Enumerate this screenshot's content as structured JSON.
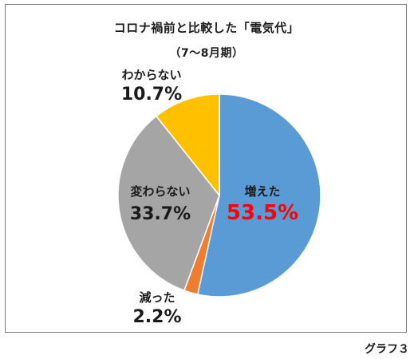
{
  "caption": "グラフ３",
  "chart_data": {
    "type": "pie",
    "title": "コロナ禍前と比較した「電気代」",
    "subtitle": "（7～8月期）",
    "slices": [
      {
        "label": "増えた",
        "value": 53.5,
        "display": "53.5%",
        "color": "#5b9bd5",
        "value_color": "#ff0000"
      },
      {
        "label": "減った",
        "value": 2.2,
        "display": "2.2%",
        "color": "#ed7d31",
        "value_color": "#1a1a1a"
      },
      {
        "label": "変わらない",
        "value": 33.7,
        "display": "33.7%",
        "color": "#a5a5a5",
        "value_color": "#1a1a1a"
      },
      {
        "label": "わからない",
        "value": 10.7,
        "display": "10.7%",
        "color": "#ffc000",
        "value_color": "#1a1a1a"
      }
    ],
    "start_angle": "12 o'clock",
    "direction": "clockwise",
    "legend": "none"
  }
}
